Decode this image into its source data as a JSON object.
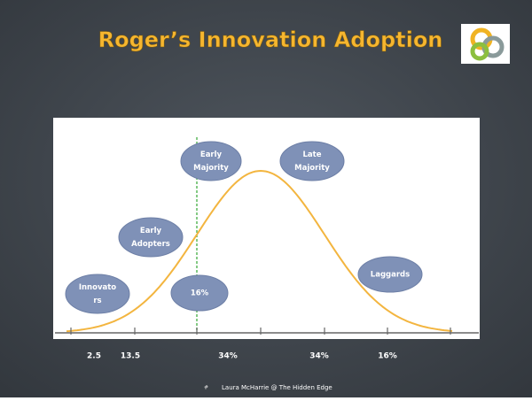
{
  "slide": {
    "title": "Roger’s Innovation Adoption",
    "bubbles": [
      {
        "lines": [
          "Innovato",
          "rs"
        ]
      },
      {
        "lines": [
          "Early",
          "Adopters"
        ]
      },
      {
        "lines": [
          "Early",
          "Majority"
        ]
      },
      {
        "lines": [
          "16%"
        ]
      },
      {
        "lines": [
          "Late",
          "Majority"
        ]
      },
      {
        "lines": [
          "Laggards"
        ]
      }
    ],
    "bottom_labels": [
      "2.5",
      "13.5",
      "34%",
      "34%",
      "16%"
    ],
    "footer": {
      "mark": "#",
      "text": "Laura McHarrie @ The Hidden Edge"
    }
  }
}
